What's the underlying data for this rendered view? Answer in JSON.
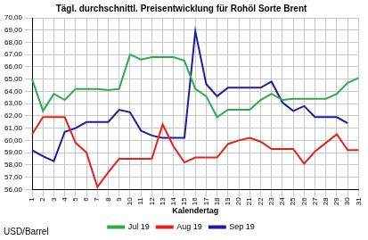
{
  "chart_data": {
    "type": "line",
    "title": "Tägl. durchschnittl. Preisentwicklung für Rohöl Sorte Brent",
    "y_label": "USD/Barrel",
    "x_label": "Kalendertag",
    "categories": [
      "1",
      "2",
      "3",
      "4",
      "5",
      "6",
      "7",
      "8",
      "9",
      "10",
      "11",
      "12",
      "13",
      "14",
      "15",
      "16",
      "17",
      "18",
      "19",
      "20",
      "21",
      "22",
      "23",
      "24",
      "25",
      "26",
      "27",
      "28",
      "29",
      "30",
      "31"
    ],
    "series": [
      {
        "name": "Jul 19",
        "color": "#2eaa4a",
        "values": [
          65.0,
          62.4,
          63.8,
          63.3,
          64.2,
          64.2,
          64.2,
          64.1,
          64.2,
          67.0,
          66.6,
          66.8,
          66.8,
          66.8,
          66.5,
          64.2,
          63.6,
          61.9,
          62.5,
          62.5,
          62.5,
          63.3,
          63.8,
          63.3,
          63.4,
          63.4,
          63.4,
          63.4,
          63.8,
          64.7,
          65.1
        ]
      },
      {
        "name": "Aug 19",
        "color": "#e8201a",
        "values": [
          60.5,
          61.9,
          61.9,
          61.9,
          59.8,
          59.0,
          56.2,
          57.4,
          58.5,
          58.5,
          58.5,
          58.5,
          61.3,
          59.5,
          58.2,
          58.6,
          58.6,
          58.6,
          59.7,
          60.0,
          60.2,
          59.9,
          59.3,
          59.3,
          59.3,
          58.1,
          59.1,
          59.8,
          60.5,
          59.2,
          59.2
        ]
      },
      {
        "name": "Sep 19",
        "color": "#1c1ca0",
        "values": [
          59.2,
          58.7,
          58.3,
          60.7,
          61.0,
          61.5,
          61.5,
          61.5,
          62.5,
          62.3,
          60.8,
          60.4,
          60.2,
          60.2,
          60.2,
          68.9,
          64.6,
          63.6,
          64.3,
          64.3,
          64.3,
          64.3,
          64.8,
          63.1,
          62.4,
          62.8,
          61.9,
          61.9,
          61.9,
          61.4,
          null
        ]
      }
    ],
    "ylim": [
      56,
      70
    ],
    "yticks": [
      {
        "value": 56,
        "label": "56,00"
      },
      {
        "value": 57,
        "label": "57,00"
      },
      {
        "value": 58,
        "label": "58,00"
      },
      {
        "value": 59,
        "label": "59,00"
      },
      {
        "value": 60,
        "label": "60,00"
      },
      {
        "value": 61,
        "label": "61,00"
      },
      {
        "value": 62,
        "label": "62,00"
      },
      {
        "value": 63,
        "label": "63,00"
      },
      {
        "value": 64,
        "label": "64,00"
      },
      {
        "value": 65,
        "label": "65,00"
      },
      {
        "value": 66,
        "label": "66,00"
      },
      {
        "value": 67,
        "label": "67,00"
      },
      {
        "value": 68,
        "label": "68,00"
      },
      {
        "value": 69,
        "label": "69,00"
      },
      {
        "value": 70,
        "label": "70,00"
      }
    ],
    "grid": true,
    "legend": "bottom"
  }
}
